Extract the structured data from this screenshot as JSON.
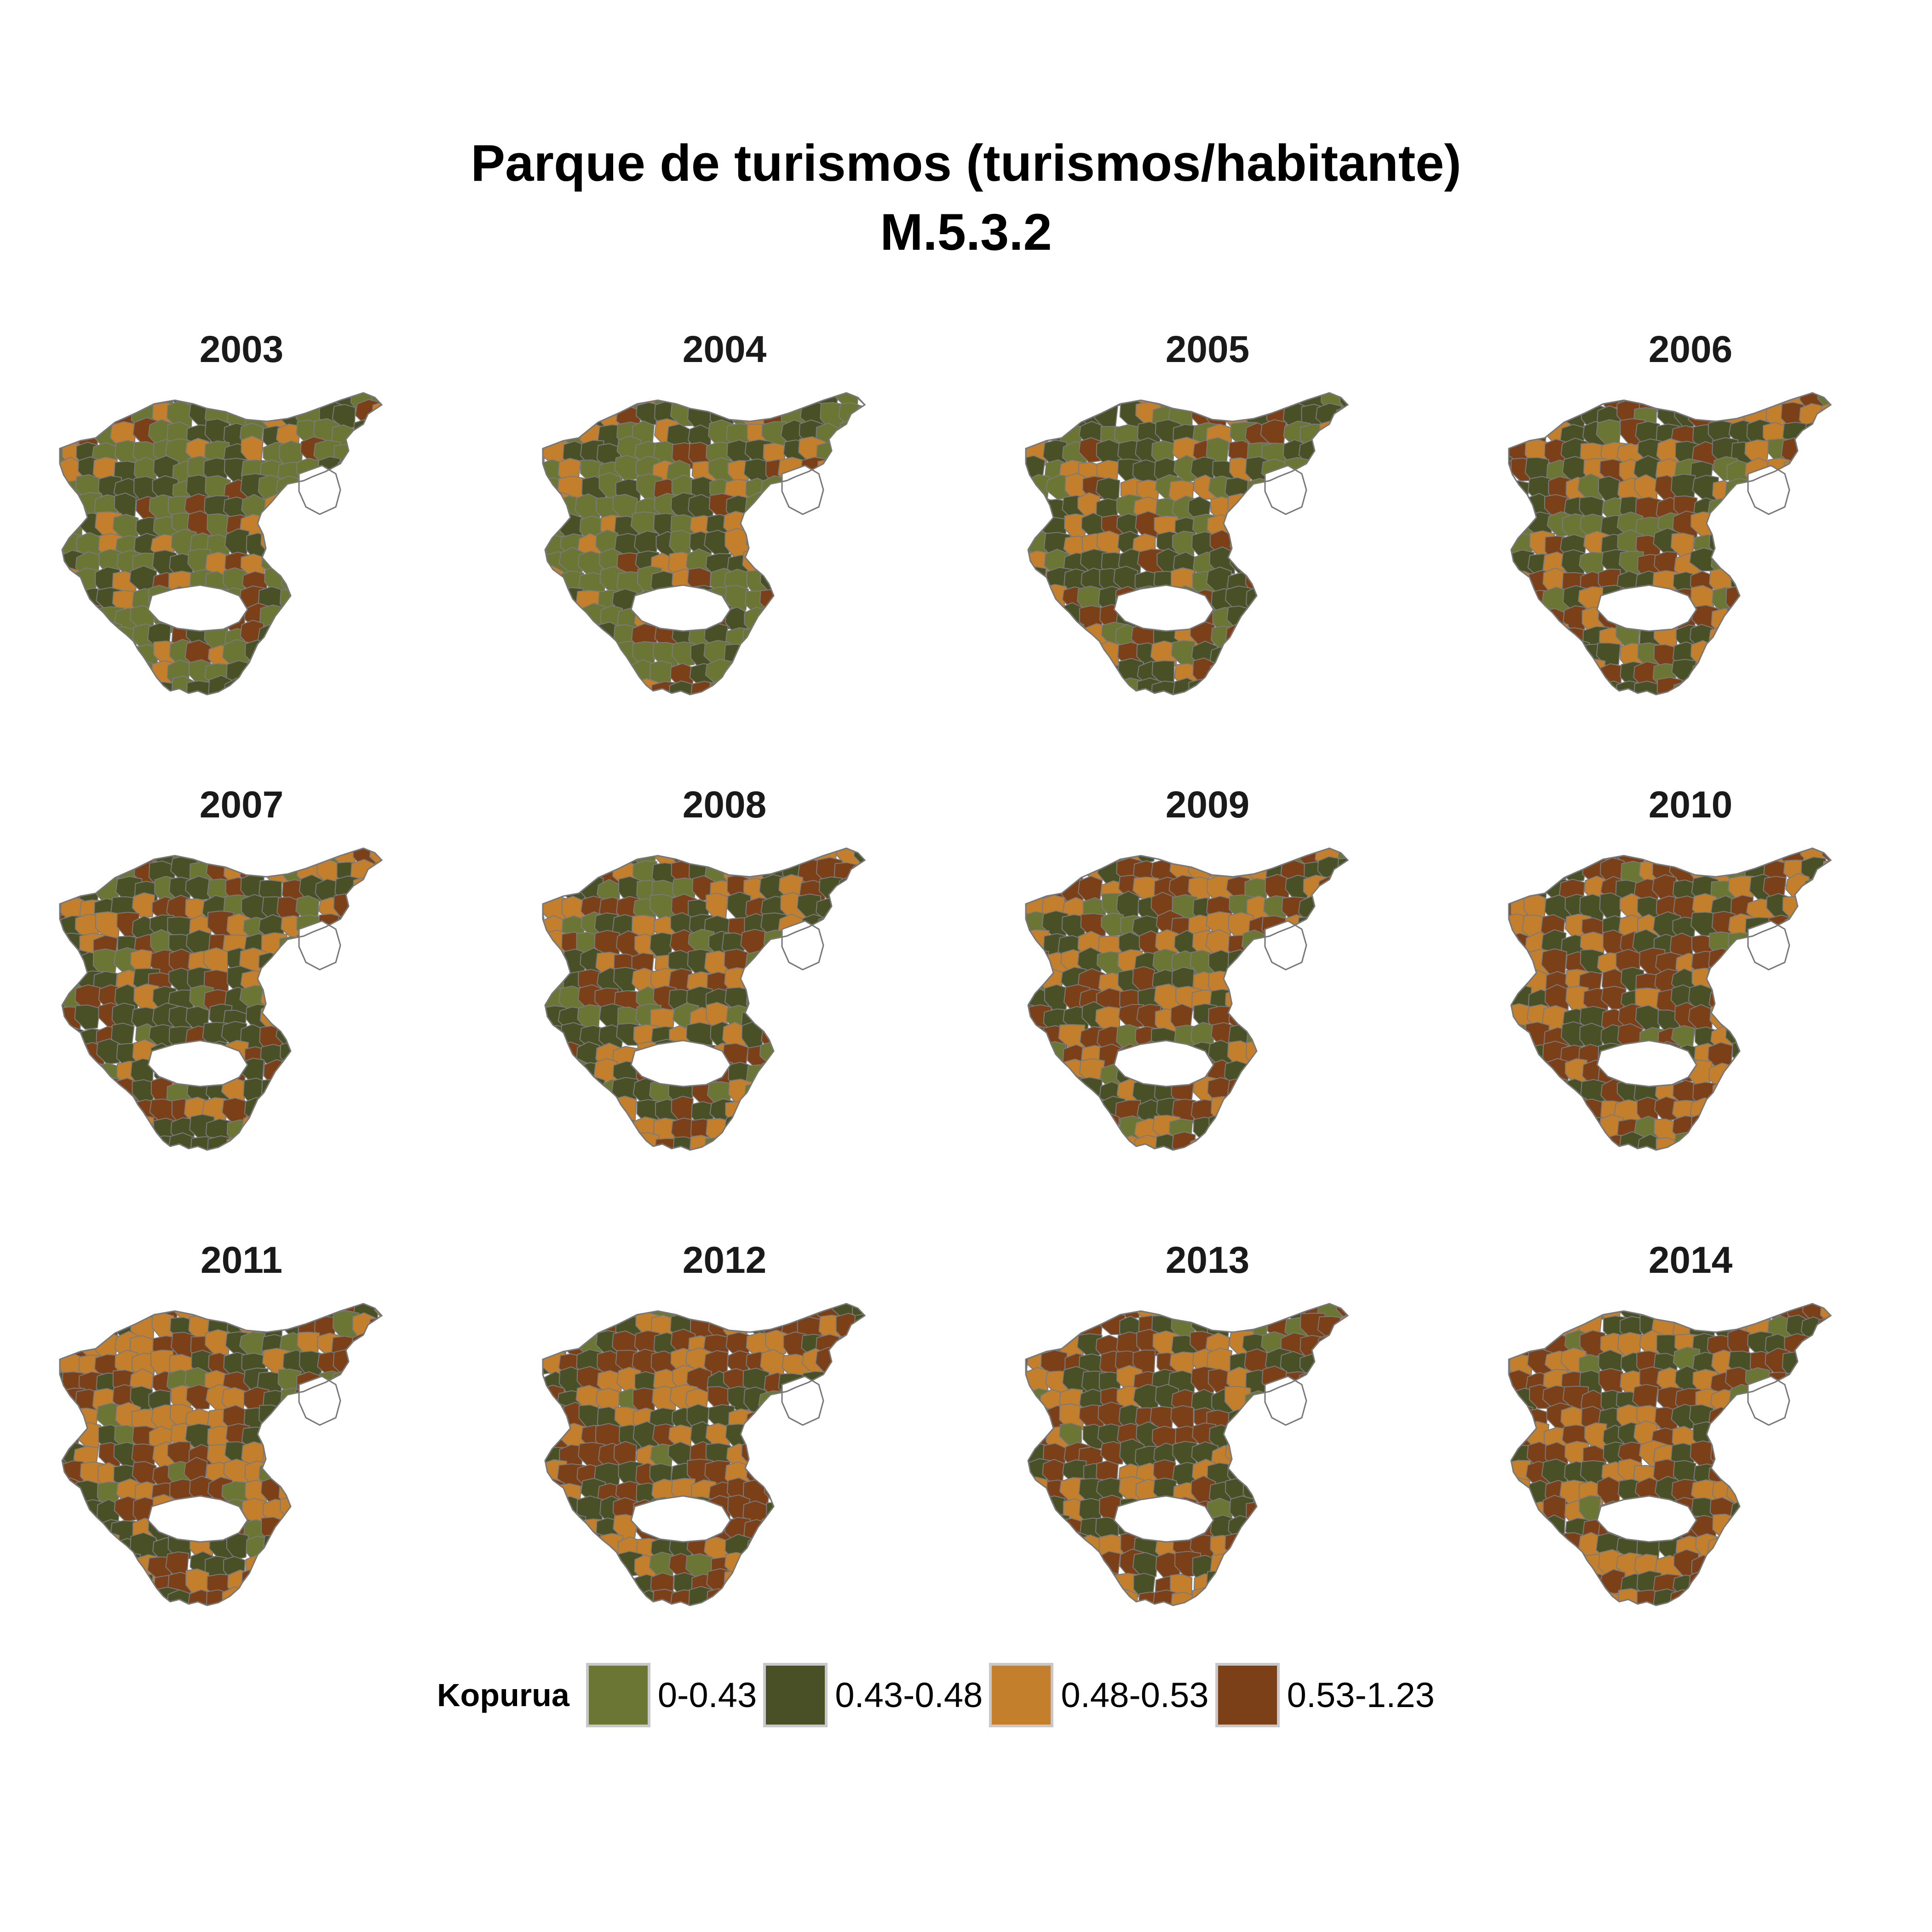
{
  "title": {
    "line1": "Parque de turismos (turismos/habitante)",
    "line2": "M.5.3.2"
  },
  "legend": {
    "title": "Kopurua",
    "classes": [
      {
        "label": "0-0.43",
        "color": "#6b7634"
      },
      {
        "label": "0.43-0.48",
        "color": "#4a5026"
      },
      {
        "label": "0.48-0.53",
        "color": "#c47f2c"
      },
      {
        "label": "0.53-1.23",
        "color": "#7c4019"
      }
    ]
  },
  "panels": [
    {
      "year": "2003",
      "class_shares": [
        0.48,
        0.3,
        0.13,
        0.09
      ]
    },
    {
      "year": "2004",
      "class_shares": [
        0.44,
        0.29,
        0.16,
        0.11
      ]
    },
    {
      "year": "2005",
      "class_shares": [
        0.3,
        0.38,
        0.18,
        0.14
      ]
    },
    {
      "year": "2006",
      "class_shares": [
        0.18,
        0.34,
        0.25,
        0.23
      ]
    },
    {
      "year": "2007",
      "class_shares": [
        0.16,
        0.42,
        0.22,
        0.2
      ]
    },
    {
      "year": "2008",
      "class_shares": [
        0.14,
        0.38,
        0.23,
        0.25
      ]
    },
    {
      "year": "2009",
      "class_shares": [
        0.12,
        0.34,
        0.26,
        0.28
      ]
    },
    {
      "year": "2010",
      "class_shares": [
        0.1,
        0.32,
        0.27,
        0.31
      ]
    },
    {
      "year": "2011",
      "class_shares": [
        0.1,
        0.3,
        0.3,
        0.3
      ]
    },
    {
      "year": "2012",
      "class_shares": [
        0.08,
        0.31,
        0.25,
        0.36
      ]
    },
    {
      "year": "2013",
      "class_shares": [
        0.08,
        0.3,
        0.26,
        0.36
      ]
    },
    {
      "year": "2014",
      "class_shares": [
        0.07,
        0.3,
        0.25,
        0.38
      ]
    }
  ]
}
